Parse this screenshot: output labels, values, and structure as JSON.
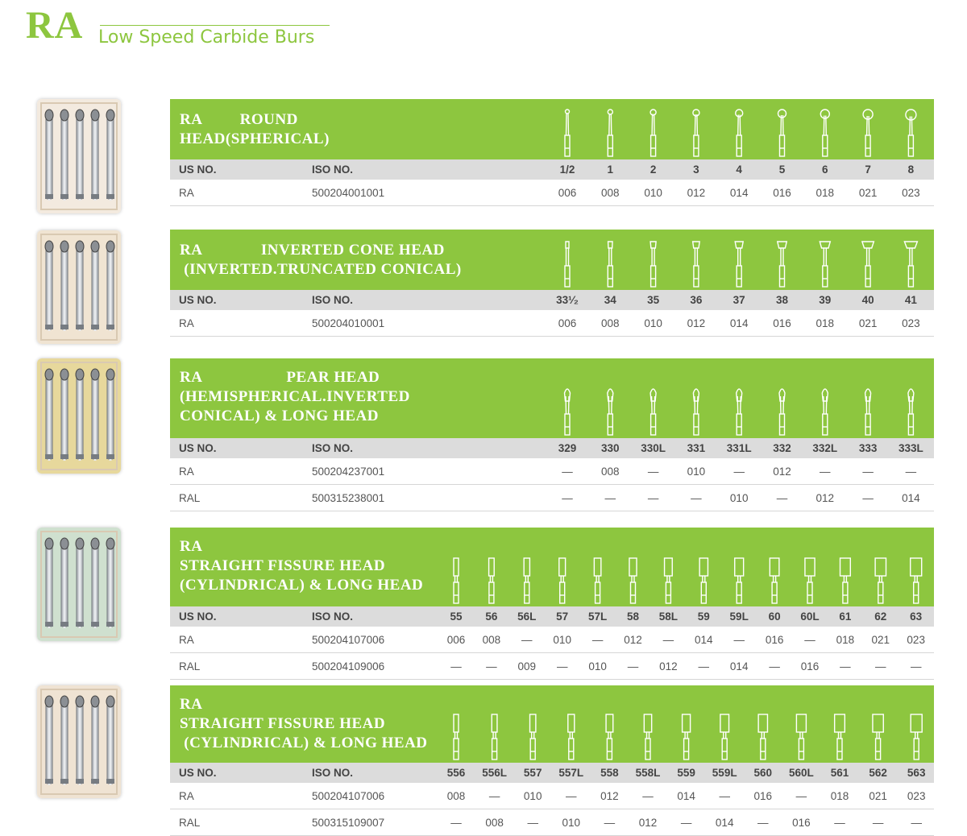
{
  "brand": "RA",
  "subtitle": "Low Speed Carbide Burs",
  "column_labels": {
    "us_no": "US NO.",
    "iso_no": "ISO NO."
  },
  "sections": [
    {
      "title": "RA         ROUND\nHEAD(SPHERICAL)",
      "head_shape": "round",
      "sizes": [
        "1/2",
        "1",
        "2",
        "3",
        "4",
        "5",
        "6",
        "7",
        "8"
      ],
      "rows": [
        {
          "us": "RA",
          "iso": "500204001001",
          "values": [
            "006",
            "008",
            "010",
            "012",
            "014",
            "016",
            "018",
            "021",
            "023"
          ]
        }
      ]
    },
    {
      "title": "RA              INVERTED CONE HEAD\n (INVERTED.TRUNCATED CONICAL)",
      "head_shape": "inverted-cone",
      "sizes": [
        "33¹⁄₂",
        "34",
        "35",
        "36",
        "37",
        "38",
        "39",
        "40",
        "41"
      ],
      "rows": [
        {
          "us": "RA",
          "iso": "500204010001",
          "values": [
            "006",
            "008",
            "010",
            "012",
            "014",
            "016",
            "018",
            "021",
            "023"
          ]
        }
      ]
    },
    {
      "title": "RA                    PEAR HEAD\n(HEMISPHERICAL.INVERTED\nCONICAL) & LONG HEAD",
      "head_shape": "pear",
      "sizes": [
        "329",
        "330",
        "330L",
        "331",
        "331L",
        "332",
        "332L",
        "333",
        "333L"
      ],
      "rows": [
        {
          "us": "RA",
          "iso": "500204237001",
          "values": [
            "—",
            "008",
            "—",
            "010",
            "—",
            "012",
            "—",
            "—",
            "—"
          ]
        },
        {
          "us": "RAL",
          "iso": "500315238001",
          "values": [
            "—",
            "—",
            "—",
            "—",
            "010",
            "—",
            "012",
            "—",
            "014"
          ]
        }
      ]
    },
    {
      "title": "RA\nSTRAIGHT FISSURE HEAD\n(CYLINDRICAL) & LONG HEAD",
      "head_shape": "cylinder",
      "sizes": [
        "55",
        "56",
        "56L",
        "57",
        "57L",
        "58",
        "58L",
        "59",
        "59L",
        "60",
        "60L",
        "61",
        "62",
        "63"
      ],
      "rows": [
        {
          "us": "RA",
          "iso": "500204107006",
          "values": [
            "006",
            "008",
            "—",
            "010",
            "—",
            "012",
            "—",
            "014",
            "—",
            "016",
            "—",
            "018",
            "021",
            "023"
          ]
        },
        {
          "us": "RAL",
          "iso": "500204109006",
          "values": [
            "—",
            "—",
            "009",
            "—",
            "010",
            "—",
            "012",
            "—",
            "014",
            "—",
            "016",
            "—",
            "—",
            "—"
          ]
        }
      ]
    },
    {
      "title": "RA\nSTRAIGHT FISSURE HEAD\n (CYLINDRICAL) & LONG HEAD",
      "head_shape": "cylinder-cross-cut",
      "sizes": [
        "556",
        "556L",
        "557",
        "557L",
        "558",
        "558L",
        "559",
        "559L",
        "560",
        "560L",
        "561",
        "562",
        "563"
      ],
      "rows": [
        {
          "us": "RA",
          "iso": "500204107006",
          "values": [
            "008",
            "—",
            "010",
            "—",
            "012",
            "—",
            "014",
            "—",
            "016",
            "—",
            "018",
            "021",
            "023"
          ]
        },
        {
          "us": "RAL",
          "iso": "500315109007",
          "values": [
            "—",
            "008",
            "—",
            "010",
            "—",
            "012",
            "—",
            "014",
            "—",
            "016",
            "—",
            "—",
            "—"
          ]
        }
      ]
    }
  ],
  "colors": {
    "accent": "#8dc63f",
    "label_band": "#dcdcdc",
    "text": "#555555"
  },
  "photos": [
    {
      "name": "round-burs-box-photo",
      "bg": "#f3eadf"
    },
    {
      "name": "inverted-cone-burs-box-photo",
      "bg": "#f0e4d2"
    },
    {
      "name": "pear-burs-box-photo",
      "bg": "#e7d89c"
    },
    {
      "name": "straight-fissure-burs-box-photo",
      "bg": "#cfe0cf"
    },
    {
      "name": "cross-cut-fissure-burs-box-photo",
      "bg": "#efe3d3"
    }
  ]
}
